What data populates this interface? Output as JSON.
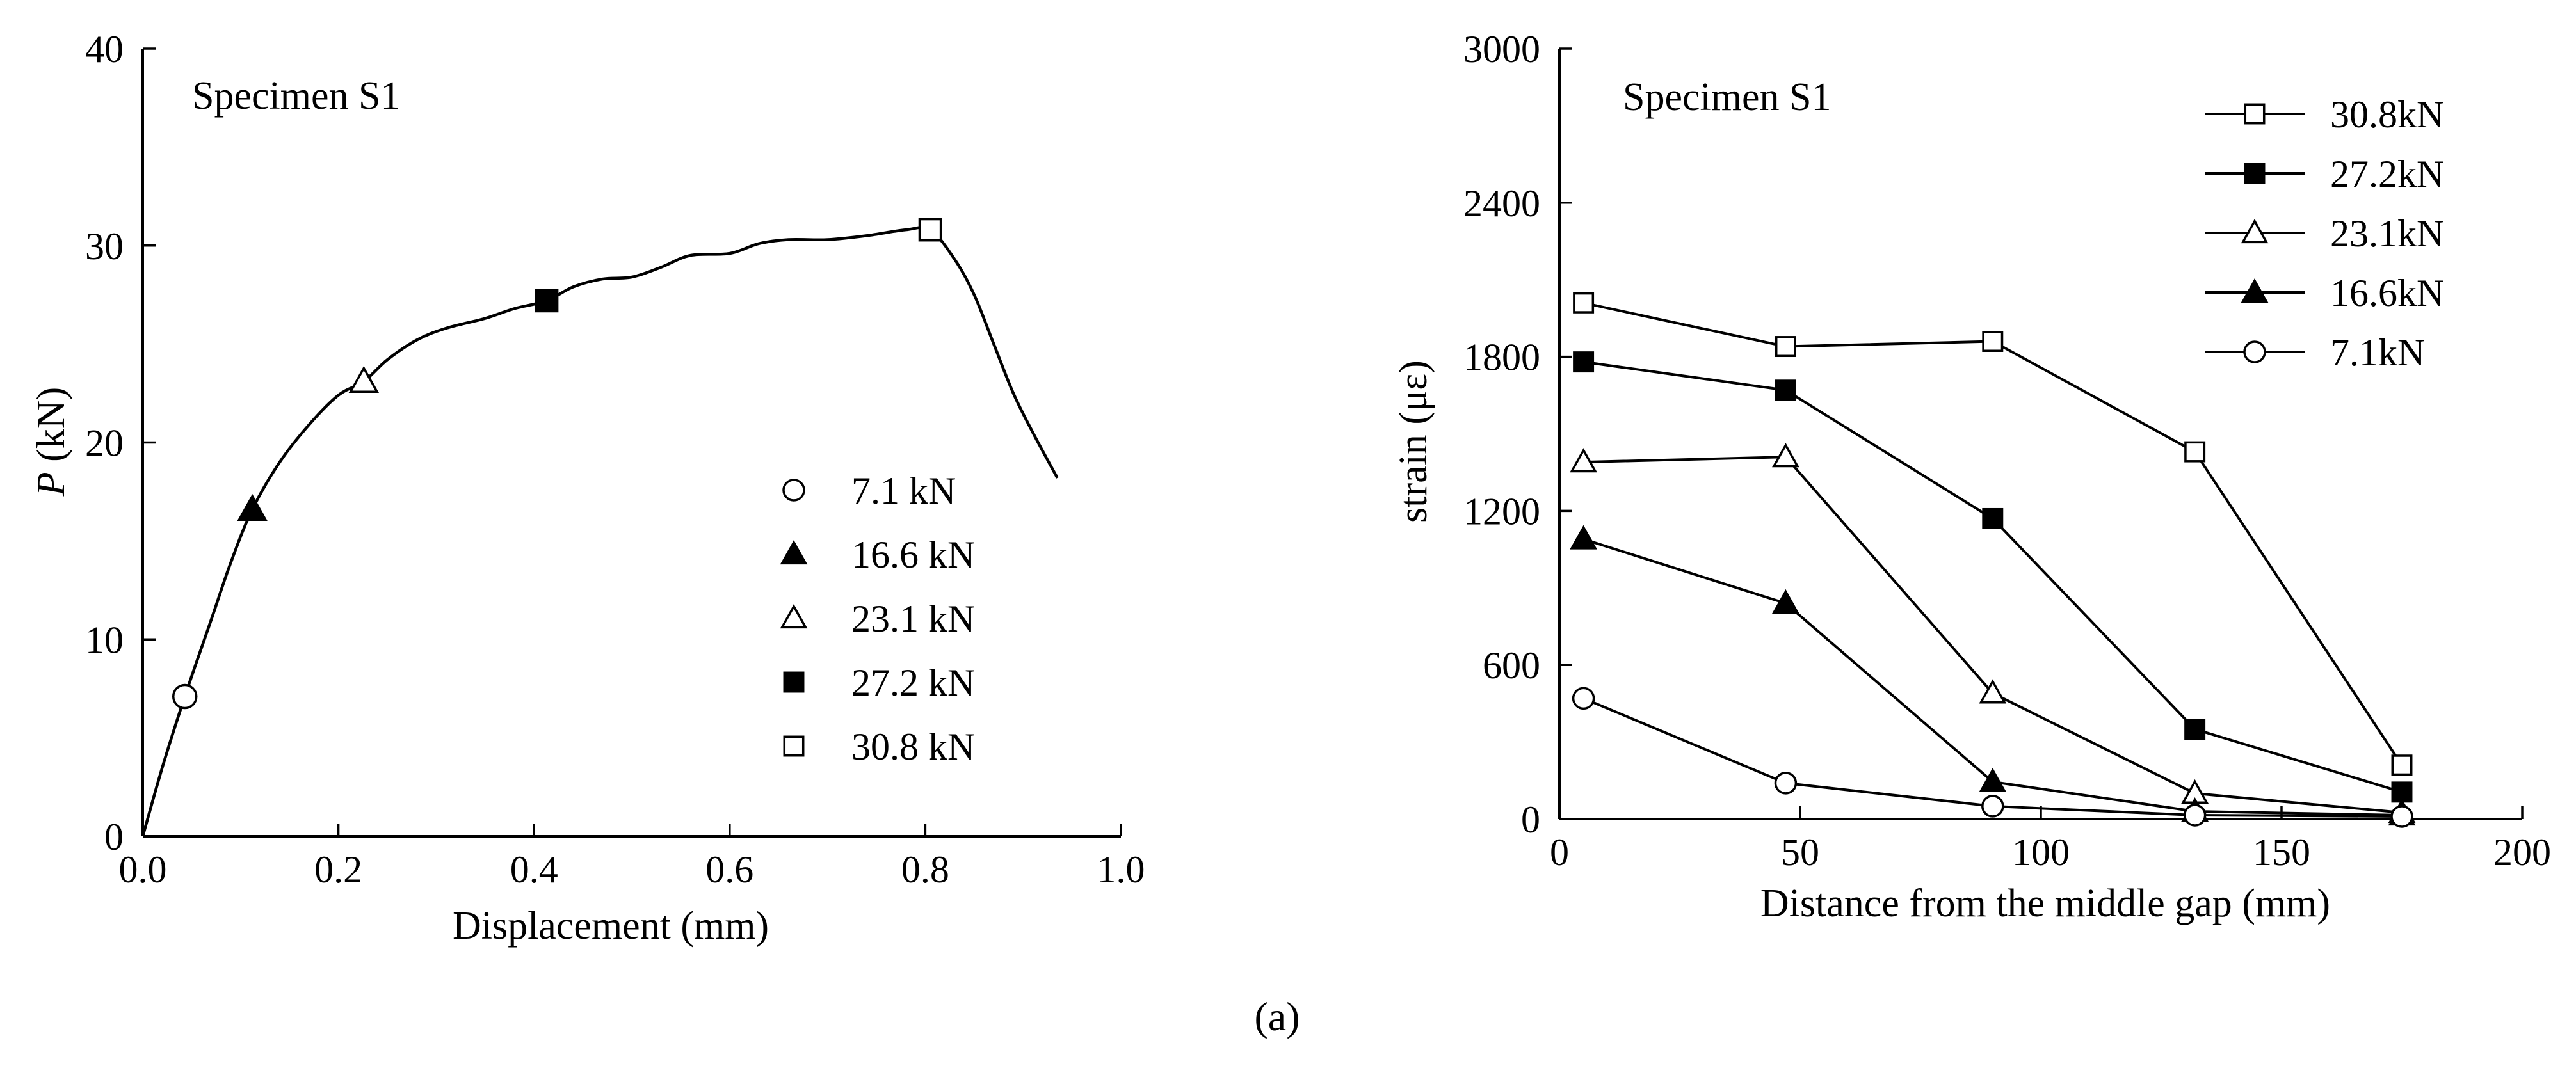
{
  "caption": "(a)",
  "chart_data": [
    {
      "type": "line",
      "panel_title": "Specimen S1",
      "xlabel": "Displacement (mm)",
      "ylabel_italic": "P",
      "ylabel_rest": " (kN)",
      "xlim": [
        0.0,
        1.0
      ],
      "ylim": [
        0,
        40
      ],
      "xticks": [
        0.0,
        0.2,
        0.4,
        0.6,
        0.8,
        1.0
      ],
      "xtick_labels": [
        "0.0",
        "0.2",
        "0.4",
        "0.6",
        "0.8",
        "1.0"
      ],
      "yticks": [
        0,
        10,
        20,
        30,
        40
      ],
      "ytick_labels": [
        "0",
        "10",
        "20",
        "30",
        "40"
      ],
      "curve": {
        "x": [
          0.0,
          0.02,
          0.043,
          0.07,
          0.09,
          0.112,
          0.14,
          0.17,
          0.2,
          0.226,
          0.25,
          0.28,
          0.31,
          0.35,
          0.38,
          0.413,
          0.44,
          0.47,
          0.5,
          0.53,
          0.56,
          0.6,
          0.63,
          0.66,
          0.7,
          0.74,
          0.78,
          0.805,
          0.83,
          0.85,
          0.87,
          0.89,
          0.91,
          0.935
        ],
        "y": [
          0,
          3.5,
          7.1,
          11.0,
          13.9,
          16.6,
          19.0,
          20.9,
          22.4,
          23.1,
          24.2,
          25.2,
          25.8,
          26.3,
          26.8,
          27.2,
          27.9,
          28.3,
          28.4,
          28.9,
          29.5,
          29.6,
          30.1,
          30.3,
          30.3,
          30.5,
          30.8,
          30.8,
          29.3,
          27.5,
          25.0,
          22.5,
          20.5,
          18.2
        ]
      },
      "markers": [
        {
          "name": "7.1 kN",
          "symbol": "circle-open",
          "x": 0.043,
          "y": 7.1
        },
        {
          "name": "16.6 kN",
          "symbol": "triangle-filled",
          "x": 0.112,
          "y": 16.6
        },
        {
          "name": "23.1 kN",
          "symbol": "triangle-open",
          "x": 0.226,
          "y": 23.1
        },
        {
          "name": "27.2 kN",
          "symbol": "square-filled",
          "x": 0.413,
          "y": 27.2
        },
        {
          "name": "30.8 kN",
          "symbol": "square-open",
          "x": 0.805,
          "y": 30.8
        }
      ],
      "legend_position": "center-right",
      "legend": [
        {
          "label": "7.1 kN",
          "symbol": "circle-open"
        },
        {
          "label": "16.6 kN",
          "symbol": "triangle-filled"
        },
        {
          "label": "23.1 kN",
          "symbol": "triangle-open"
        },
        {
          "label": "27.2 kN",
          "symbol": "square-filled"
        },
        {
          "label": "30.8 kN",
          "symbol": "square-open"
        }
      ]
    },
    {
      "type": "line",
      "panel_title": "Specimen S1",
      "xlabel": "Distance from the middle gap (mm)",
      "ylabel": "strain (με)",
      "xlim": [
        0,
        200
      ],
      "ylim": [
        0,
        3000
      ],
      "xticks": [
        0,
        50,
        100,
        150,
        200
      ],
      "xtick_labels": [
        "0",
        "50",
        "100",
        "150",
        "200"
      ],
      "yticks": [
        0,
        600,
        1200,
        1800,
        2400,
        3000
      ],
      "ytick_labels": [
        "0",
        "600",
        "1200",
        "1800",
        "2400",
        "3000"
      ],
      "x": [
        5,
        47,
        90,
        132,
        175
      ],
      "series": [
        {
          "name": "30.8kN",
          "symbol": "square-open",
          "values": [
            2010,
            1840,
            1860,
            1430,
            210
          ]
        },
        {
          "name": "27.2kN",
          "symbol": "square-filled",
          "values": [
            1780,
            1670,
            1170,
            350,
            105
          ]
        },
        {
          "name": "23.1kN",
          "symbol": "triangle-open",
          "values": [
            1390,
            1410,
            490,
            100,
            25
          ]
        },
        {
          "name": "16.6kN",
          "symbol": "triangle-filled",
          "values": [
            1090,
            840,
            145,
            30,
            15
          ]
        },
        {
          "name": "7.1kN",
          "symbol": "circle-open",
          "values": [
            470,
            140,
            50,
            15,
            10
          ]
        }
      ],
      "legend_position": "top-right"
    }
  ]
}
